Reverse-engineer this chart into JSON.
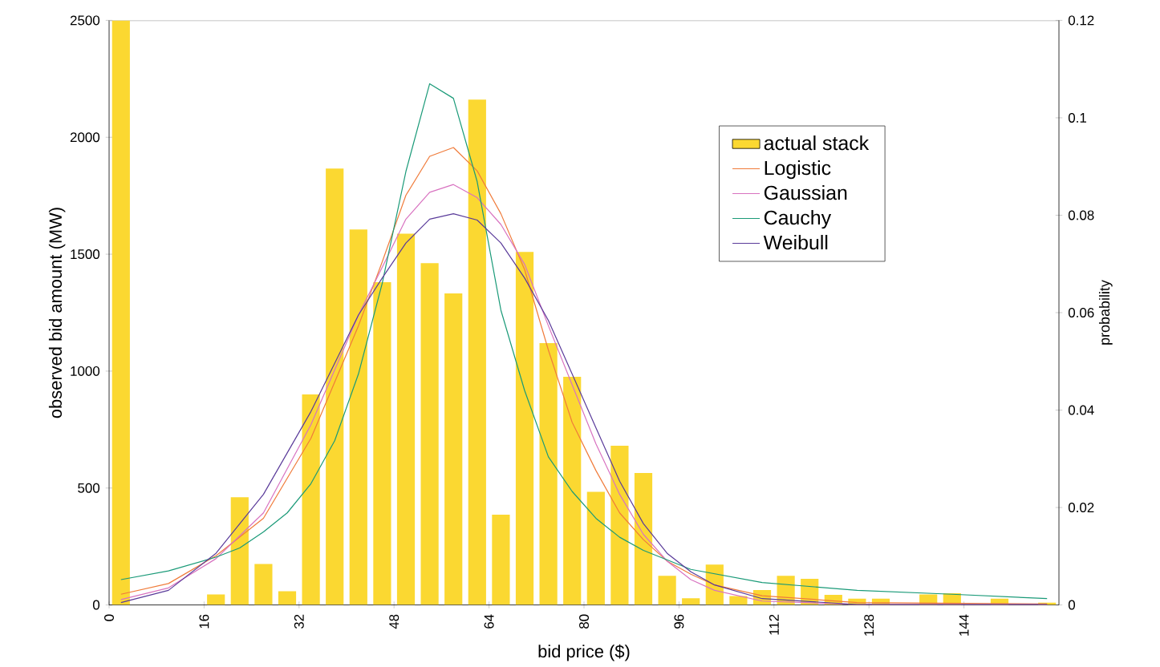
{
  "chart_data": {
    "type": "bar",
    "xlabel": "bid price ($)",
    "ylabel": "observed bid amount (MW)",
    "y2label": "probability",
    "legend": "top right",
    "marker": "none",
    "grid": false,
    "x": [
      2,
      6,
      10,
      14,
      18,
      22,
      26,
      30,
      34,
      38,
      42,
      46,
      50,
      54,
      58,
      62,
      66,
      70,
      74,
      78,
      82,
      86,
      90,
      94,
      98,
      102,
      106,
      110,
      114,
      118,
      122,
      126,
      130,
      134,
      138,
      142,
      146,
      150,
      154,
      158
    ],
    "xlim": [
      0,
      160
    ],
    "xticks": [
      0,
      16,
      32,
      48,
      64,
      80,
      96,
      112,
      128,
      144
    ],
    "ylim": [
      0,
      2500
    ],
    "yticks": [
      0,
      500,
      1000,
      1500,
      2000,
      2500
    ],
    "y2lim": [
      0,
      0.12
    ],
    "y2ticks": [
      0,
      0.02,
      0.04,
      0.06,
      0.08,
      0.1,
      0.12
    ],
    "series": [
      {
        "name": "actual stack",
        "color": "#fbd831",
        "values": [
          2500,
          0,
          0,
          0,
          45,
          461,
          175,
          59,
          900,
          1866,
          1606,
          1380,
          1588,
          1462,
          1332,
          2161,
          386,
          1510,
          1120,
          976,
          484,
          681,
          564,
          125,
          29,
          173,
          38,
          64,
          125,
          112,
          43,
          27,
          27,
          0,
          45,
          50,
          null,
          27,
          null,
          10
        ]
      },
      {
        "name": "Logistic",
        "type": "line",
        "axis": "y2",
        "color": "#f07b3a",
        "line_style": "solid",
        "x": [
          2,
          10,
          18,
          26,
          34,
          42,
          46,
          50,
          54,
          58,
          62,
          66,
          70,
          74,
          78,
          82,
          86,
          90,
          94,
          98,
          102,
          110,
          126,
          158
        ],
        "values": [
          0.0022,
          0.0044,
          0.0101,
          0.0178,
          0.0342,
          0.0573,
          0.0704,
          0.0841,
          0.0921,
          0.0939,
          0.0891,
          0.0803,
          0.0688,
          0.0523,
          0.0375,
          0.0276,
          0.0189,
          0.0134,
          0.009,
          0.0063,
          0.0041,
          0.0019,
          0.0005,
          0.0002
        ]
      },
      {
        "name": "Gaussian",
        "type": "line",
        "axis": "y2",
        "color": "#d872c0",
        "line_style": "solid",
        "x": [
          2,
          10,
          18,
          26,
          34,
          42,
          46,
          50,
          54,
          58,
          62,
          66,
          70,
          74,
          78,
          82,
          86,
          90,
          94,
          98,
          102,
          110,
          126,
          158
        ],
        "values": [
          0.0011,
          0.0035,
          0.0095,
          0.0189,
          0.037,
          0.0595,
          0.0693,
          0.0792,
          0.0847,
          0.0863,
          0.0836,
          0.0781,
          0.0699,
          0.0573,
          0.0452,
          0.0331,
          0.0227,
          0.0145,
          0.009,
          0.0052,
          0.003,
          0.0008,
          0.0001,
          0.0001
        ]
      },
      {
        "name": "Cauchy",
        "type": "line",
        "axis": "y2",
        "color": "#1a9a78",
        "line_style": "solid",
        "x": [
          2,
          10,
          18,
          22,
          26,
          30,
          34,
          38,
          42,
          46,
          50,
          54,
          58,
          62,
          66,
          70,
          74,
          78,
          82,
          86,
          90,
          98,
          110,
          126,
          142,
          158
        ],
        "values": [
          0.0052,
          0.007,
          0.0098,
          0.0117,
          0.015,
          0.0189,
          0.0249,
          0.0337,
          0.0474,
          0.066,
          0.089,
          0.107,
          0.104,
          0.0869,
          0.0605,
          0.044,
          0.0304,
          0.0233,
          0.0178,
          0.0139,
          0.0112,
          0.0073,
          0.0046,
          0.003,
          0.0022,
          0.0013
        ]
      },
      {
        "name": "Weibull",
        "type": "line",
        "axis": "y2",
        "color": "#5a3b9a",
        "line_style": "solid",
        "x": [
          2,
          10,
          18,
          26,
          34,
          42,
          46,
          50,
          54,
          58,
          62,
          66,
          70,
          74,
          78,
          82,
          86,
          90,
          94,
          98,
          102,
          110,
          126,
          158
        ],
        "values": [
          0.0005,
          0.003,
          0.0106,
          0.0227,
          0.0397,
          0.0595,
          0.0671,
          0.0743,
          0.0792,
          0.0803,
          0.079,
          0.0743,
          0.0671,
          0.0584,
          0.0474,
          0.0364,
          0.0254,
          0.0167,
          0.0106,
          0.0068,
          0.0041,
          0.0013,
          0.0001,
          0.0001
        ]
      }
    ]
  }
}
